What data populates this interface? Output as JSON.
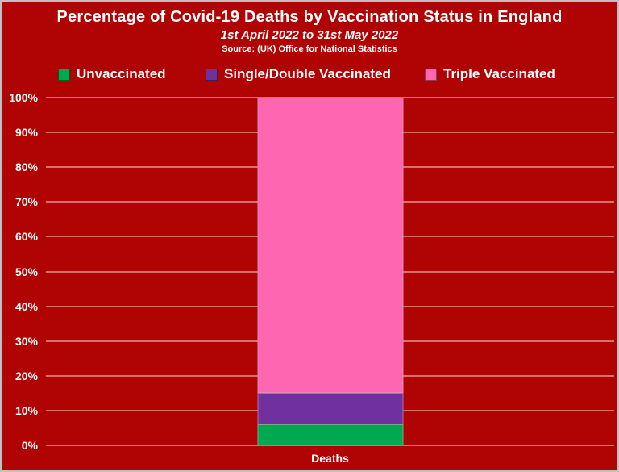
{
  "chart_data": {
    "type": "bar",
    "stacked": true,
    "title": "Percentage of Covid-19 Deaths by Vaccination Status in England",
    "subtitle": "1st April 2022 to 31st May 2022",
    "source": "Source: (UK) Office for National Statistics",
    "categories": [
      "Deaths"
    ],
    "series": [
      {
        "name": "Unvaccinated",
        "values": [
          6
        ],
        "color": "#00A84F"
      },
      {
        "name": "Single/Double Vaccinated",
        "values": [
          9
        ],
        "color": "#7030A0"
      },
      {
        "name": "Triple Vaccinated",
        "values": [
          85
        ],
        "color": "#FF66B2"
      }
    ],
    "ylim": [
      0,
      100
    ],
    "ytick_step": 10,
    "ytick_suffix": "%",
    "grid": true,
    "legend_position": "top",
    "background_color": "#B00404",
    "gridline_color": "rgba(255,218,218,0.5)",
    "text_color": "#FFFFFF"
  }
}
